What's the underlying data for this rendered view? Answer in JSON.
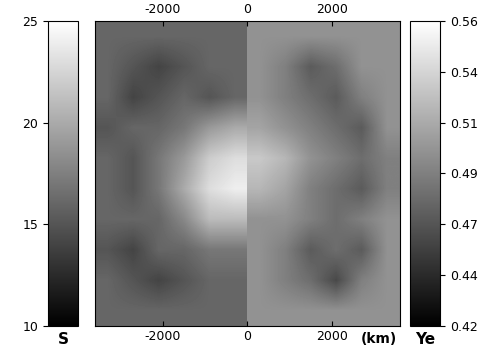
{
  "chart_data": {
    "type": "heatmap",
    "xlim": [
      -3600,
      3600
    ],
    "ylim": [
      -3750,
      3750
    ],
    "xticks": [
      -2000,
      0,
      2000
    ],
    "x_unit_label": "(km)",
    "tick_labels": "x",
    "s_field": {
      "label": "S",
      "extent": [
        -3600,
        0,
        -3750,
        3750
      ],
      "range": [
        10,
        25
      ],
      "ticks": [
        10,
        15,
        20,
        25
      ],
      "cells": [
        [
          16,
          16,
          16,
          16,
          16,
          16
        ],
        [
          16,
          15,
          14,
          15,
          16,
          16
        ],
        [
          16,
          14,
          15,
          16,
          15,
          16
        ],
        [
          15,
          16,
          16,
          17,
          19,
          20
        ],
        [
          16,
          15,
          17,
          19,
          22,
          23
        ],
        [
          16,
          15,
          17,
          20,
          23,
          24
        ],
        [
          16,
          16,
          16,
          18,
          21,
          21
        ],
        [
          15,
          14,
          16,
          16,
          17,
          17
        ],
        [
          16,
          15,
          14,
          15,
          16,
          16
        ],
        [
          16,
          16,
          16,
          16,
          16,
          16
        ]
      ]
    },
    "ye_field": {
      "label": "Ye",
      "extent": [
        0,
        3600,
        -3750,
        3750
      ],
      "range": [
        0.42,
        0.56
      ],
      "ticks": [
        0.42,
        {
          "value": 0.4433,
          "label": "0.44"
        },
        {
          "value": 0.4667,
          "label": "0.47"
        },
        0.49,
        {
          "value": 0.5133,
          "label": "0.51"
        },
        {
          "value": 0.5367,
          "label": "0.54"
        },
        0.56
      ],
      "cells": [
        [
          0.5,
          0.5,
          0.5,
          0.5,
          0.5,
          0.5
        ],
        [
          0.5,
          0.49,
          0.47,
          0.48,
          0.5,
          0.5
        ],
        [
          0.5,
          0.49,
          0.48,
          0.47,
          0.49,
          0.5
        ],
        [
          0.51,
          0.5,
          0.49,
          0.48,
          0.47,
          0.5
        ],
        [
          0.53,
          0.52,
          0.5,
          0.49,
          0.48,
          0.49
        ],
        [
          0.52,
          0.51,
          0.49,
          0.48,
          0.47,
          0.49
        ],
        [
          0.5,
          0.5,
          0.49,
          0.48,
          0.49,
          0.5
        ],
        [
          0.5,
          0.49,
          0.47,
          0.48,
          0.47,
          0.5
        ],
        [
          0.5,
          0.49,
          0.48,
          0.46,
          0.49,
          0.5
        ],
        [
          0.5,
          0.5,
          0.5,
          0.5,
          0.5,
          0.5
        ]
      ]
    }
  }
}
